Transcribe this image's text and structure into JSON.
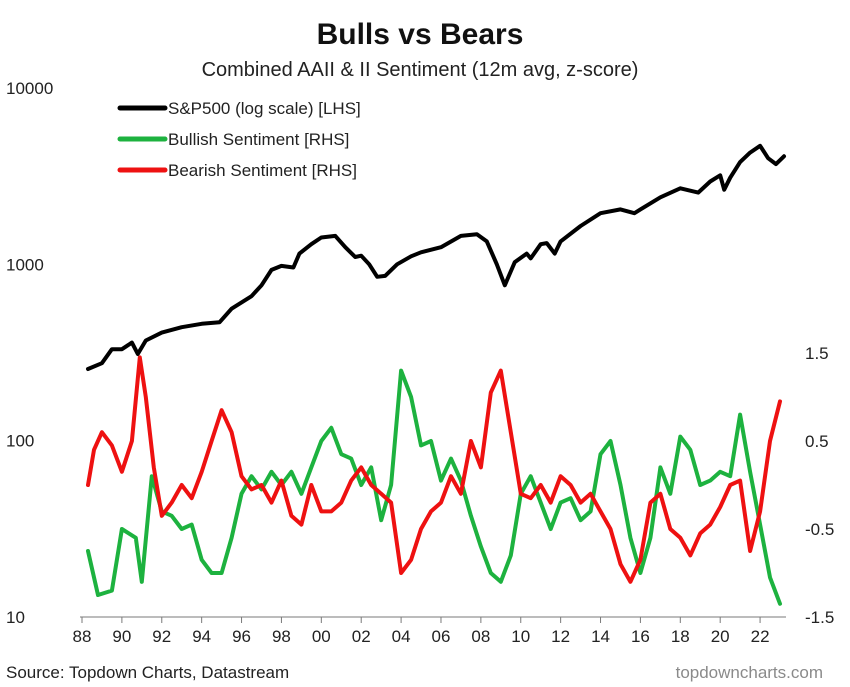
{
  "chart_data": {
    "type": "line",
    "title": "Bulls vs Bears",
    "subtitle": "Combined AAII & II Sentiment (12m avg, z-score)",
    "source": "Source: Topdown Charts, Datastream",
    "brand": "topdowncharts.com",
    "x_ticks": [
      "88",
      "90",
      "92",
      "94",
      "96",
      "98",
      "00",
      "02",
      "04",
      "06",
      "08",
      "10",
      "12",
      "14",
      "16",
      "18",
      "20",
      "22"
    ],
    "xlim": [
      1988,
      2023.3
    ],
    "y_left": {
      "scale": "log",
      "ylim": [
        10,
        10000
      ],
      "ticks": [
        "10",
        "100",
        "1000",
        "10000"
      ]
    },
    "y_right": {
      "scale": "linear",
      "ylim": [
        -1.5,
        1.5
      ],
      "ticks": [
        "-1.5",
        "-0.5",
        "0.5",
        "1.5"
      ]
    },
    "legend_position": "top-left",
    "grid": false,
    "series": [
      {
        "name": "S&P500 (log scale) [LHS]",
        "axis": "left",
        "color": "#000000",
        "x": [
          1988.3,
          1989,
          1989.5,
          1990,
          1990.5,
          1990.8,
          1991.2,
          1992,
          1993,
          1994,
          1994.9,
          1995.5,
          1996.5,
          1997,
          1997.5,
          1998,
          1998.6,
          1998.9,
          1999.5,
          2000,
          2000.7,
          2001.2,
          2001.7,
          2002,
          2002.4,
          2002.8,
          2003.2,
          2003.8,
          2004.5,
          2005,
          2006,
          2007,
          2007.8,
          2008.3,
          2008.8,
          2009.2,
          2009.7,
          2010.3,
          2010.5,
          2011,
          2011.3,
          2011.7,
          2012,
          2013,
          2014,
          2015,
          2015.7,
          2016,
          2017,
          2018,
          2018.9,
          2019.5,
          2020,
          2020.2,
          2020.5,
          2021,
          2021.5,
          2022,
          2022.4,
          2022.8,
          2023.2
        ],
        "values": [
          255,
          275,
          330,
          330,
          360,
          310,
          370,
          410,
          440,
          460,
          470,
          560,
          660,
          760,
          930,
          980,
          960,
          1150,
          1300,
          1420,
          1450,
          1250,
          1100,
          1120,
          1000,
          850,
          860,
          1000,
          1110,
          1170,
          1250,
          1450,
          1480,
          1350,
          1000,
          760,
          1030,
          1150,
          1080,
          1300,
          1320,
          1150,
          1350,
          1650,
          1950,
          2050,
          1950,
          2050,
          2400,
          2700,
          2550,
          2950,
          3200,
          2650,
          3100,
          3800,
          4300,
          4700,
          4000,
          3700,
          4100
        ]
      },
      {
        "name": "Bullish Sentiment [RHS]",
        "axis": "right",
        "color": "#1db23f",
        "x": [
          1988.3,
          1988.8,
          1989.5,
          1990,
          1990.7,
          1991,
          1991.5,
          1992,
          1992.5,
          1993,
          1993.5,
          1994,
          1994.5,
          1995,
          1995.5,
          1996,
          1996.5,
          1997,
          1997.5,
          1998,
          1998.5,
          1999,
          1999.5,
          2000,
          2000.5,
          2001,
          2001.5,
          2002,
          2002.5,
          2003,
          2003.5,
          2004,
          2004.5,
          2005,
          2005.5,
          2006,
          2006.5,
          2007,
          2007.5,
          2008,
          2008.5,
          2009,
          2009.5,
          2010,
          2010.5,
          2011,
          2011.5,
          2012,
          2012.5,
          2013,
          2013.5,
          2014,
          2014.5,
          2015,
          2015.5,
          2016,
          2016.5,
          2017,
          2017.5,
          2018,
          2018.5,
          2019,
          2019.5,
          2020,
          2020.5,
          2021,
          2021.5,
          2022,
          2022.5,
          2023
        ],
        "values": [
          -0.75,
          -1.25,
          -1.2,
          -0.5,
          -0.6,
          -1.1,
          0.1,
          -0.3,
          -0.35,
          -0.5,
          -0.45,
          -0.85,
          -1.0,
          -1.0,
          -0.6,
          -0.1,
          0.1,
          -0.05,
          0.15,
          0.0,
          0.15,
          -0.1,
          0.2,
          0.5,
          0.65,
          0.35,
          0.3,
          0.0,
          0.2,
          -0.4,
          0.0,
          1.3,
          1.0,
          0.45,
          0.5,
          0.05,
          0.3,
          0.05,
          -0.35,
          -0.7,
          -1.0,
          -1.1,
          -0.8,
          -0.1,
          0.1,
          -0.2,
          -0.5,
          -0.2,
          -0.15,
          -0.4,
          -0.3,
          0.35,
          0.5,
          0.0,
          -0.6,
          -1.0,
          -0.6,
          0.2,
          -0.1,
          0.55,
          0.4,
          0.0,
          0.05,
          0.15,
          0.1,
          0.8,
          0.15,
          -0.45,
          -1.05,
          -1.35
        ]
      },
      {
        "name": "Bearish Sentiment [RHS]",
        "axis": "right",
        "color": "#ee1111",
        "x": [
          1988.3,
          1988.6,
          1989,
          1989.5,
          1990,
          1990.5,
          1990.9,
          1991.2,
          1991.6,
          1992,
          1992.5,
          1993,
          1993.5,
          1994,
          1994.5,
          1995,
          1995.5,
          1996,
          1996.5,
          1997,
          1997.5,
          1998,
          1998.5,
          1999,
          1999.5,
          2000,
          2000.5,
          2001,
          2001.5,
          2002,
          2002.5,
          2003,
          2003.5,
          2004,
          2004.5,
          2005,
          2005.5,
          2006,
          2006.5,
          2007,
          2007.5,
          2008,
          2008.5,
          2009,
          2009.5,
          2010,
          2010.5,
          2011,
          2011.5,
          2012,
          2012.5,
          2013,
          2013.5,
          2014,
          2014.5,
          2015,
          2015.5,
          2016,
          2016.5,
          2017,
          2017.5,
          2018,
          2018.5,
          2019,
          2019.5,
          2020,
          2020.5,
          2021,
          2021.5,
          2022,
          2022.5,
          2023
        ],
        "values": [
          0.0,
          0.4,
          0.6,
          0.45,
          0.15,
          0.5,
          1.45,
          1.0,
          0.2,
          -0.35,
          -0.2,
          0.0,
          -0.15,
          0.15,
          0.5,
          0.85,
          0.6,
          0.1,
          -0.05,
          0.0,
          -0.2,
          0.05,
          -0.35,
          -0.45,
          0.0,
          -0.3,
          -0.3,
          -0.2,
          0.05,
          0.2,
          0.0,
          -0.1,
          -0.2,
          -1.0,
          -0.85,
          -0.5,
          -0.3,
          -0.2,
          0.1,
          -0.1,
          0.5,
          0.2,
          1.05,
          1.3,
          0.6,
          -0.1,
          -0.15,
          0.0,
          -0.2,
          0.1,
          0.0,
          -0.2,
          -0.1,
          -0.3,
          -0.5,
          -0.9,
          -1.1,
          -0.85,
          -0.2,
          -0.1,
          -0.5,
          -0.6,
          -0.8,
          -0.55,
          -0.45,
          -0.25,
          0.0,
          0.05,
          -0.75,
          -0.3,
          0.5,
          0.95
        ]
      }
    ]
  }
}
